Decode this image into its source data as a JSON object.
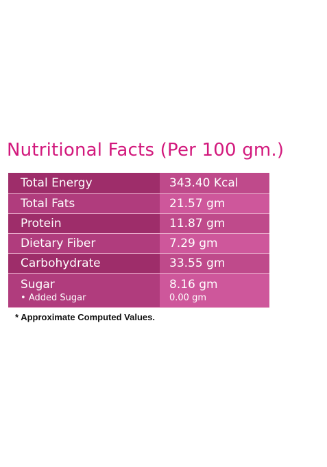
{
  "header": {
    "title": "Nutritional Facts (Per 100 gm.)"
  },
  "table": {
    "rows": [
      [
        "Total Energy",
        "343.40 Kcal"
      ],
      [
        "Total Fats",
        "21.57 gm"
      ],
      [
        "Protein",
        "11.87 gm"
      ],
      [
        "Dietary Fiber",
        "7.29 gm"
      ],
      [
        "Carbohydrate",
        "33.55 gm"
      ],
      [
        "Sugar",
        "8.16 gm"
      ]
    ],
    "sub_row": [
      "Added Sugar",
      "0.00 gm"
    ]
  },
  "footnote": "* Approximate Computed Values."
}
